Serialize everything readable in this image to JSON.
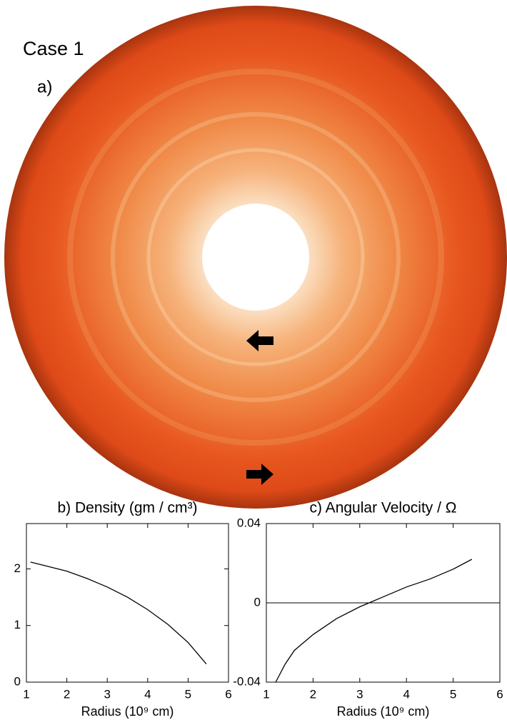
{
  "labels": {
    "case": "Case 1",
    "panel": "a)"
  },
  "chart_data": [
    {
      "type": "line",
      "title": "b) Density (gm / cm³)",
      "x_label": "Radius (10⁹ cm)",
      "x": [
        1.1,
        1.5,
        2,
        2.5,
        3,
        3.5,
        4,
        4.5,
        5,
        5.45
      ],
      "series": [
        {
          "color": "#000000",
          "values": [
            2.12,
            2.05,
            1.96,
            1.83,
            1.68,
            1.5,
            1.28,
            1.02,
            0.7,
            0.32
          ]
        }
      ],
      "xlim": [
        1,
        6
      ],
      "xticks": [
        1,
        2,
        3,
        4,
        5,
        6
      ],
      "ylim": [
        0,
        2.8
      ],
      "yticks": [
        0,
        1,
        2
      ]
    },
    {
      "type": "line",
      "title": "c) Angular Velocity / Ω",
      "x_label": "Radius (10⁹ cm)",
      "x": [
        1.2,
        1.4,
        1.6,
        2,
        2.5,
        3,
        3.2,
        3.5,
        4,
        4.5,
        5,
        5.4
      ],
      "series": [
        {
          "color": "#000000",
          "values": [
            -0.04,
            -0.031,
            -0.024,
            -0.016,
            -0.008,
            -0.002,
            0,
            0.003,
            0.008,
            0.012,
            0.017,
            0.022
          ]
        }
      ],
      "xlim": [
        1,
        6
      ],
      "xticks": [
        1,
        2,
        3,
        4,
        5,
        6
      ],
      "ylim": [
        -0.04,
        0.04
      ],
      "yticks": [
        -0.04,
        0,
        0.04
      ],
      "reference_line": 0
    }
  ]
}
